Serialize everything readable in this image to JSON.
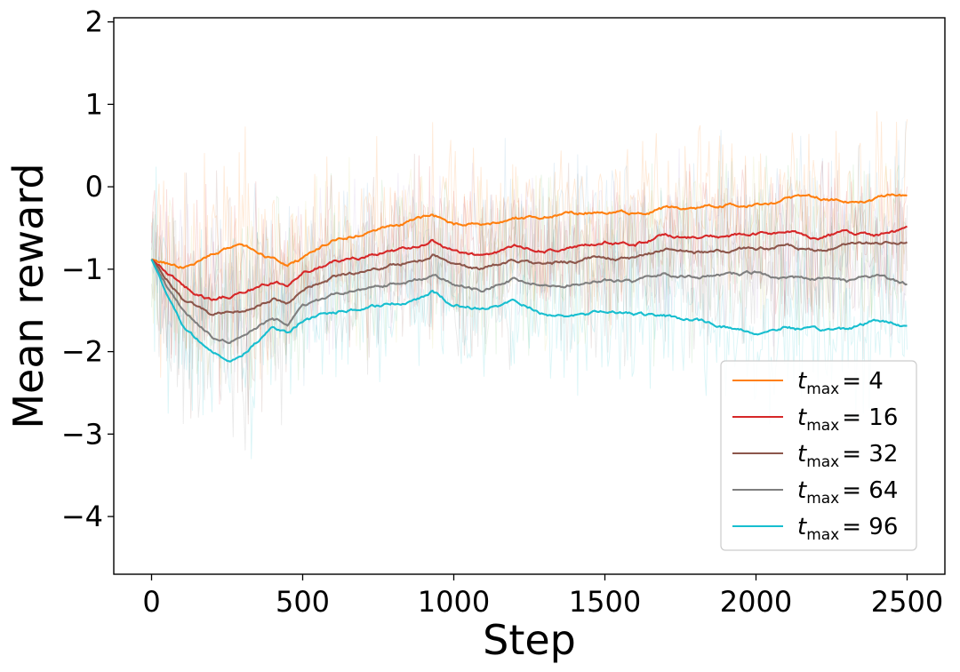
{
  "chart_data": {
    "type": "line",
    "xlabel": "Step",
    "ylabel": "Mean reward",
    "xlim": [
      -125,
      2625
    ],
    "ylim": [
      -4.7,
      2.05
    ],
    "x_ticks": [
      0,
      500,
      1000,
      1500,
      2000,
      2500
    ],
    "x_tick_labels": [
      "0",
      "500",
      "1000",
      "1500",
      "2000",
      "2500"
    ],
    "y_ticks": [
      2,
      1,
      0,
      -1,
      -2,
      -3,
      -4
    ],
    "y_tick_labels": [
      "2",
      "1",
      "0",
      "−1",
      "−2",
      "−3",
      "−4"
    ],
    "grid": false,
    "legend_position": "lower-right",
    "raw_noise_visible": true,
    "series": [
      {
        "name": "t_max = 4",
        "legend_base": "t",
        "legend_sub": "max",
        "legend_value": "= 4",
        "color": "#ff7f0e",
        "x": [
          0,
          100,
          200,
          300,
          380,
          450,
          500,
          600,
          700,
          800,
          900,
          930,
          1000,
          1100,
          1200,
          1300,
          1400,
          1500,
          1600,
          1700,
          1800,
          1900,
          2000,
          2100,
          2200,
          2300,
          2400,
          2450,
          2500
        ],
        "y": [
          -0.88,
          -0.97,
          -0.82,
          -0.68,
          -0.85,
          -0.95,
          -0.86,
          -0.65,
          -0.57,
          -0.47,
          -0.38,
          -0.33,
          -0.45,
          -0.47,
          -0.38,
          -0.36,
          -0.33,
          -0.3,
          -0.32,
          -0.26,
          -0.24,
          -0.22,
          -0.2,
          -0.15,
          -0.13,
          -0.18,
          -0.14,
          -0.08,
          -0.12
        ]
      },
      {
        "name": "t_max = 16",
        "legend_base": "t",
        "legend_sub": "max",
        "legend_value": "= 16",
        "color": "#d62728",
        "x": [
          0,
          100,
          200,
          300,
          400,
          450,
          500,
          600,
          700,
          800,
          900,
          930,
          1000,
          1100,
          1200,
          1300,
          1400,
          1500,
          1600,
          1700,
          1800,
          1900,
          2000,
          2100,
          2200,
          2300,
          2400,
          2500
        ],
        "y": [
          -0.88,
          -1.2,
          -1.38,
          -1.28,
          -1.15,
          -1.2,
          -1.05,
          -0.92,
          -0.85,
          -0.78,
          -0.72,
          -0.65,
          -0.78,
          -0.85,
          -0.72,
          -0.78,
          -0.74,
          -0.68,
          -0.7,
          -0.58,
          -0.62,
          -0.6,
          -0.58,
          -0.55,
          -0.62,
          -0.55,
          -0.58,
          -0.52
        ]
      },
      {
        "name": "t_max = 32",
        "legend_base": "t",
        "legend_sub": "max",
        "legend_value": "= 32",
        "color": "#8c564b",
        "x": [
          0,
          100,
          200,
          300,
          400,
          450,
          500,
          600,
          700,
          800,
          900,
          930,
          1000,
          1100,
          1200,
          1300,
          1400,
          1500,
          1600,
          1700,
          1800,
          1900,
          2000,
          2100,
          2200,
          2300,
          2400,
          2500
        ],
        "y": [
          -0.88,
          -1.35,
          -1.55,
          -1.5,
          -1.35,
          -1.4,
          -1.22,
          -1.1,
          -1.02,
          -0.95,
          -0.88,
          -0.82,
          -0.95,
          -1.0,
          -0.88,
          -0.95,
          -0.9,
          -0.85,
          -0.88,
          -0.75,
          -0.8,
          -0.78,
          -0.75,
          -0.72,
          -0.8,
          -0.72,
          -0.68,
          -0.68
        ]
      },
      {
        "name": "t_max = 64",
        "legend_base": "t",
        "legend_sub": "max",
        "legend_value": "= 64",
        "color": "#7f7f7f",
        "x": [
          0,
          100,
          200,
          250,
          300,
          400,
          450,
          500,
          600,
          700,
          800,
          900,
          930,
          1000,
          1100,
          1200,
          1300,
          1400,
          1500,
          1600,
          1700,
          1800,
          1900,
          2000,
          2100,
          2200,
          2300,
          2400,
          2500
        ],
        "y": [
          -0.88,
          -1.5,
          -1.8,
          -1.88,
          -1.82,
          -1.6,
          -1.65,
          -1.45,
          -1.32,
          -1.25,
          -1.18,
          -1.12,
          -1.05,
          -1.18,
          -1.25,
          -1.12,
          -1.2,
          -1.18,
          -1.12,
          -1.15,
          -1.05,
          -1.1,
          -1.08,
          -1.05,
          -1.12,
          -1.1,
          -1.15,
          -1.08,
          -1.18
        ]
      },
      {
        "name": "t_max = 96",
        "legend_base": "t",
        "legend_sub": "max",
        "legend_value": "= 96",
        "color": "#17becf",
        "x": [
          0,
          100,
          200,
          250,
          300,
          400,
          450,
          500,
          600,
          700,
          800,
          900,
          930,
          1000,
          1100,
          1200,
          1300,
          1400,
          1500,
          1600,
          1700,
          1800,
          1900,
          2000,
          2100,
          2200,
          2300,
          2400,
          2500
        ],
        "y": [
          -0.88,
          -1.7,
          -2.0,
          -2.1,
          -2.05,
          -1.7,
          -1.78,
          -1.62,
          -1.52,
          -1.48,
          -1.42,
          -1.35,
          -1.28,
          -1.45,
          -1.48,
          -1.38,
          -1.55,
          -1.55,
          -1.52,
          -1.55,
          -1.58,
          -1.62,
          -1.7,
          -1.78,
          -1.7,
          -1.75,
          -1.72,
          -1.62,
          -1.68
        ]
      }
    ]
  }
}
